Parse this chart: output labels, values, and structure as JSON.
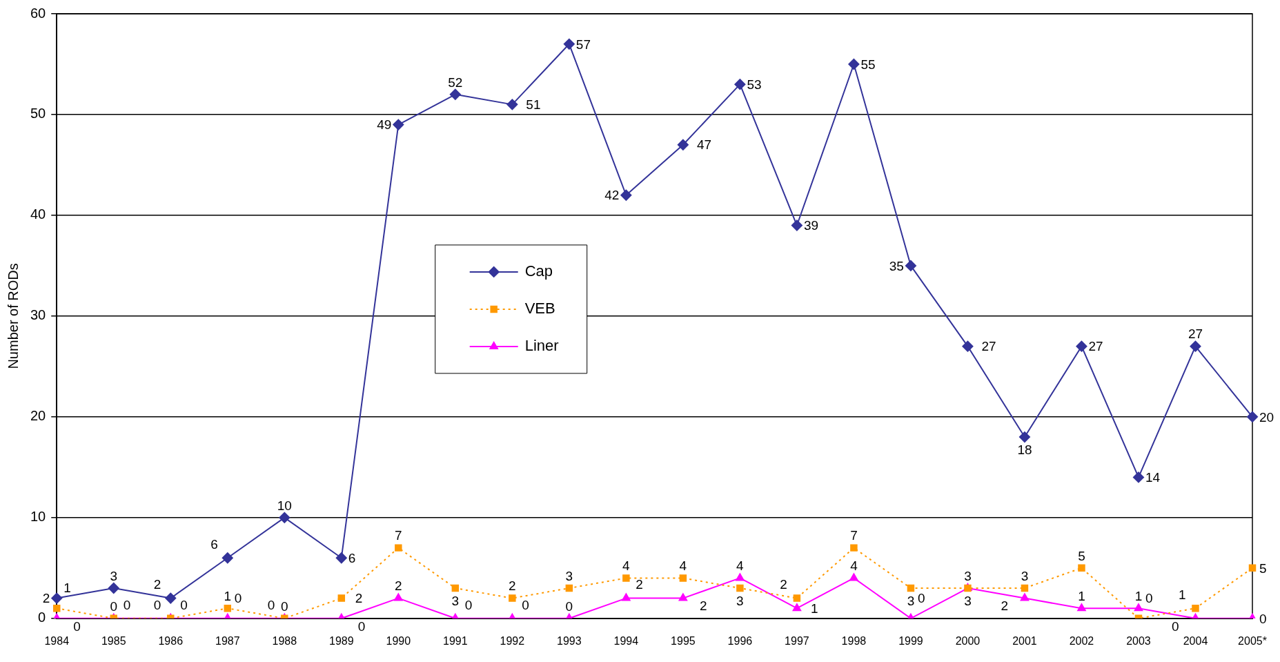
{
  "chart_data": {
    "type": "line",
    "ylabel": "Number of RODs",
    "categories": [
      "1984",
      "1985",
      "1986",
      "1987",
      "1988",
      "1989",
      "1990",
      "1991",
      "1992",
      "1993",
      "1994",
      "1995",
      "1996",
      "1997",
      "1998",
      "1999",
      "2000",
      "2001",
      "2002",
      "2003",
      "2004",
      "2005*"
    ],
    "series": [
      {
        "name": "Cap",
        "color": "#333399",
        "marker": "diamond",
        "line_style": "solid",
        "values": [
          2,
          3,
          2,
          6,
          10,
          6,
          49,
          52,
          51,
          57,
          42,
          47,
          53,
          39,
          55,
          35,
          27,
          18,
          27,
          14,
          27,
          20
        ]
      },
      {
        "name": "VEB",
        "color": "#ff9900",
        "marker": "square",
        "line_style": "dotted",
        "values": [
          1,
          0,
          0,
          1,
          0,
          2,
          7,
          3,
          2,
          3,
          4,
          4,
          3,
          2,
          7,
          3,
          3,
          3,
          5,
          0,
          1,
          5
        ]
      },
      {
        "name": "Liner",
        "color": "#ff00ff",
        "marker": "triangle",
        "line_style": "solid",
        "values": [
          0,
          0,
          0,
          0,
          0,
          0,
          2,
          0,
          0,
          0,
          2,
          2,
          4,
          1,
          4,
          0,
          3,
          2,
          1,
          1,
          0,
          0
        ]
      }
    ],
    "ylim": [
      0,
      60
    ],
    "yticks": [
      0,
      10,
      20,
      30,
      40,
      50,
      60
    ],
    "grid": "y",
    "legend": "center",
    "data_labels": true
  }
}
